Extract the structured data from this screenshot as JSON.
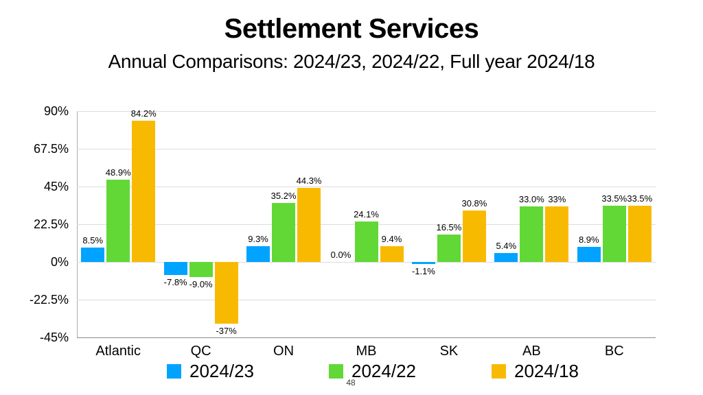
{
  "title": "Settlement Services",
  "subtitle": "Annual Comparisons: 2024/23, 2024/22, Full year 2024/18",
  "page_number": "48",
  "chart_data": {
    "type": "bar",
    "title": "Settlement Services",
    "subtitle": "Annual Comparisons: 2024/23, 2024/22, Full year 2024/18",
    "categories": [
      "Atlantic",
      "QC",
      "ON",
      "MB",
      "SK",
      "AB",
      "BC"
    ],
    "series": [
      {
        "name": "2024/23",
        "color": "#00A3FF",
        "values": [
          8.5,
          -7.8,
          9.3,
          0.0,
          -1.1,
          5.4,
          8.9
        ],
        "labels": [
          "8.5%",
          "-7.8%",
          "9.3%",
          "0.0%",
          "-1.1%",
          "5.4%",
          "8.9%"
        ]
      },
      {
        "name": "2024/22",
        "color": "#61D836",
        "values": [
          48.9,
          -9.0,
          35.2,
          24.1,
          16.5,
          33.0,
          33.5
        ],
        "labels": [
          "48.9%",
          "-9.0%",
          "35.2%",
          "24.1%",
          "16.5%",
          "33.0%",
          "33.5%"
        ]
      },
      {
        "name": "2024/18",
        "color": "#F8BA00",
        "values": [
          84.2,
          -37,
          44.3,
          9.4,
          30.8,
          33,
          33.5
        ],
        "labels": [
          "84.2%",
          "-37%",
          "44.3%",
          "9.4%",
          "30.8%",
          "33%",
          "33.5%"
        ]
      }
    ],
    "ylim": [
      -45,
      90
    ],
    "yticks": [
      {
        "value": 90,
        "label": "90%"
      },
      {
        "value": 67.5,
        "label": "67.5%"
      },
      {
        "value": 45,
        "label": "45%"
      },
      {
        "value": 22.5,
        "label": "22.5%"
      },
      {
        "value": 0,
        "label": "0%"
      },
      {
        "value": -22.5,
        "label": "-22.5%"
      },
      {
        "value": -45,
        "label": "-45%"
      }
    ],
    "grid": true,
    "legend_position": "bottom",
    "legend": [
      "2024/23",
      "2024/22",
      "2024/18"
    ]
  }
}
